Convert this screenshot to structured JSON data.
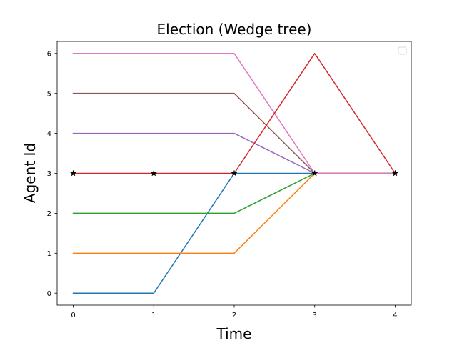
{
  "chart_data": {
    "type": "line",
    "title": "Election (Wedge tree)",
    "xlabel": "Time",
    "ylabel": "Agent Id",
    "xticks": [
      0,
      1,
      2,
      3,
      4
    ],
    "yticks": [
      0,
      1,
      2,
      3,
      4,
      5,
      6
    ],
    "xlim": [
      -0.2,
      4.2
    ],
    "ylim": [
      -0.3,
      6.3
    ],
    "grid": false,
    "legend": {
      "placement": "top-right",
      "entries": []
    },
    "x": [
      0,
      1,
      2,
      3,
      4
    ],
    "series": [
      {
        "color": "#1f77b4",
        "values": [
          0,
          0,
          3,
          3,
          3
        ]
      },
      {
        "color": "#ff7f0e",
        "values": [
          1,
          1,
          1,
          3,
          3
        ]
      },
      {
        "color": "#2ca02c",
        "values": [
          2,
          2,
          2,
          3,
          3
        ]
      },
      {
        "color": "#9467bd",
        "values": [
          4,
          4,
          4,
          3,
          3
        ]
      },
      {
        "color": "#8c564b",
        "values": [
          5,
          5,
          5,
          3,
          3
        ]
      },
      {
        "color": "#e377c2",
        "values": [
          6,
          6,
          6,
          3,
          3
        ]
      },
      {
        "color": "#d62728",
        "values": [
          3,
          3,
          3,
          6,
          3
        ]
      }
    ],
    "markers": {
      "symbol": "star",
      "color": "#000000",
      "points": [
        [
          0,
          3
        ],
        [
          1,
          3
        ],
        [
          2,
          3
        ],
        [
          3,
          3
        ],
        [
          4,
          3
        ]
      ]
    }
  }
}
